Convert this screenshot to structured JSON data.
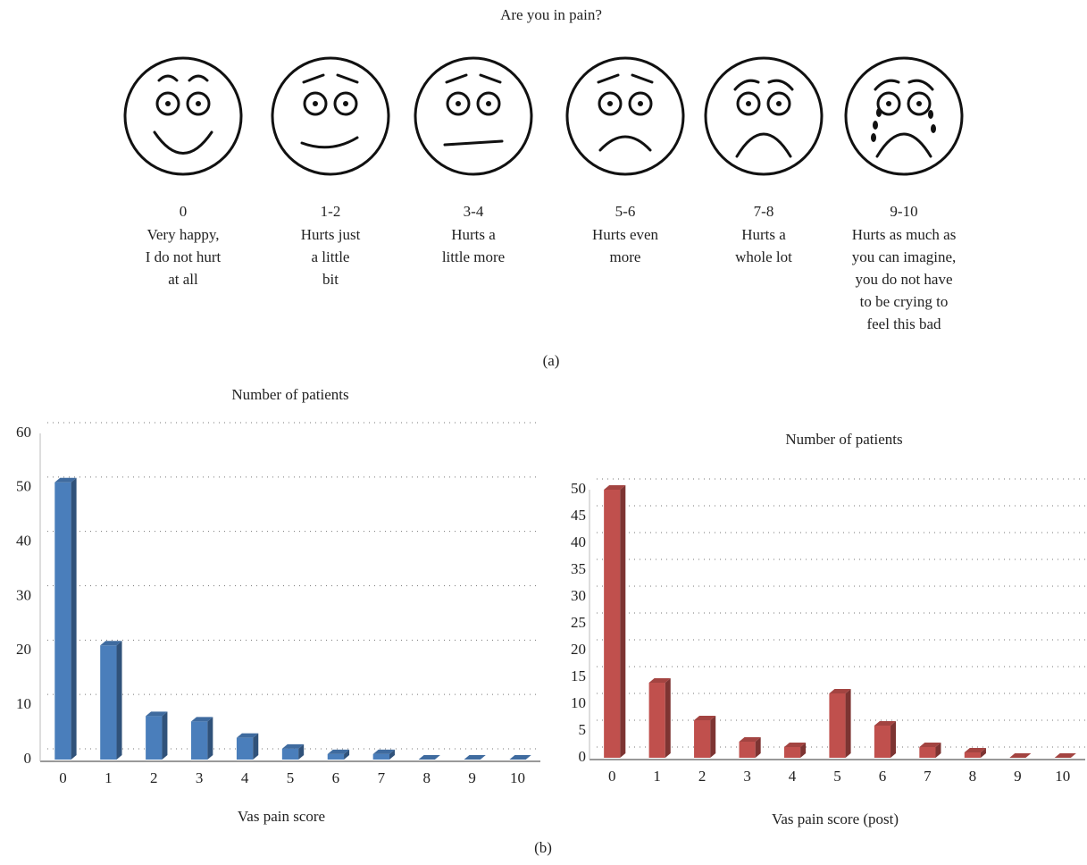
{
  "figure": {
    "title": "Are you in pain?",
    "faces": [
      {
        "score": "0",
        "lines": [
          "Very happy,",
          "I do not hurt",
          "at all"
        ]
      },
      {
        "score": "1-2",
        "lines": [
          "Hurts just",
          "a little",
          "bit"
        ]
      },
      {
        "score": "3-4",
        "lines": [
          "Hurts a",
          "little more"
        ]
      },
      {
        "score": "5-6",
        "lines": [
          "Hurts even",
          "more"
        ]
      },
      {
        "score": "7-8",
        "lines": [
          "Hurts a",
          "whole lot"
        ]
      },
      {
        "score": "9-10",
        "lines": [
          "Hurts as much as",
          "you can imagine,",
          "you do not have",
          "to be crying to",
          "feel this bad"
        ]
      }
    ],
    "label_a": "(a)",
    "label_b": "(b)"
  },
  "chart_data": [
    {
      "type": "bar",
      "title": "Number of patients",
      "x_label": "Vas pain score",
      "categories": [
        "0",
        "1",
        "2",
        "3",
        "4",
        "5",
        "6",
        "7",
        "8",
        "9",
        "10"
      ],
      "values": [
        51,
        21,
        8,
        7,
        4,
        2,
        1,
        1,
        0,
        0,
        0
      ],
      "color": "#4a7ebb",
      "ylim": [
        0,
        60
      ],
      "yticks": [
        0,
        10,
        20,
        30,
        40,
        50,
        60
      ],
      "grid": true
    },
    {
      "type": "bar",
      "title": "Number of patients",
      "x_label": "Vas pain score (post)",
      "categories": [
        "0",
        "1",
        "2",
        "3",
        "4",
        "5",
        "6",
        "7",
        "8",
        "9",
        "10"
      ],
      "values": [
        50,
        14,
        7,
        3,
        2,
        12,
        6,
        2,
        1,
        0,
        0
      ],
      "color": "#c0504d",
      "ylim": [
        0,
        50
      ],
      "yticks": [
        0,
        5,
        10,
        15,
        20,
        25,
        30,
        35,
        40,
        45,
        50
      ],
      "grid": true
    }
  ]
}
